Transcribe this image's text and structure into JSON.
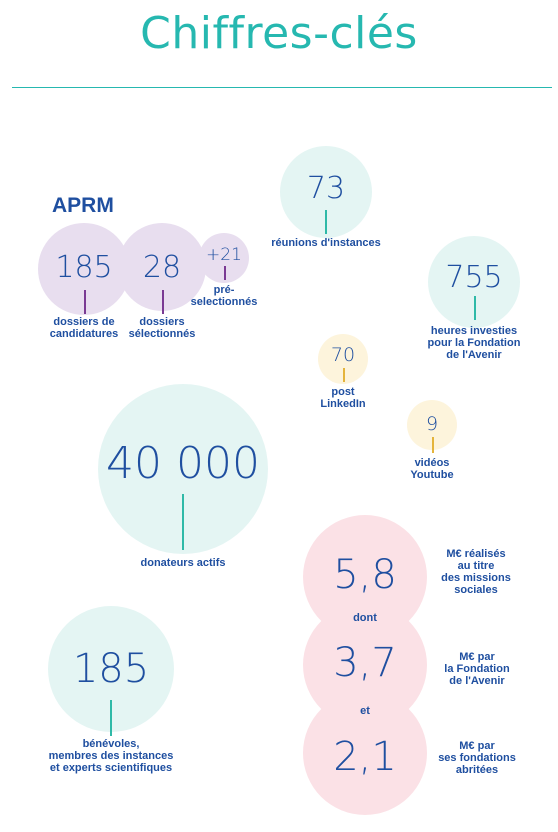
{
  "page": {
    "title": "Chiffres-clés"
  },
  "aprm": {
    "heading": "APRM",
    "candidatures": {
      "value": "185",
      "label": "dossiers de\ncandidatures"
    },
    "selectionnes": {
      "value": "28",
      "label": "dossiers\nsélectionnés"
    },
    "preselectionnes": {
      "value": "+21",
      "label": "pré-\nselectionnés"
    }
  },
  "reunions": {
    "value": "73",
    "label": "réunions d'instances"
  },
  "heures": {
    "value": "755",
    "label": "heures investies\npour la Fondation\nde l'Avenir"
  },
  "linkedin": {
    "value": "70",
    "label": "post\nLinkedIn"
  },
  "youtube": {
    "value": "9",
    "label": "vidéos\nYoutube"
  },
  "donateurs": {
    "value": "40 000",
    "label": "donateurs actifs"
  },
  "benevoles": {
    "value": "185",
    "label": "bénévoles,\nmembres des instances\net experts scientifiques"
  },
  "missions": {
    "total": {
      "value": "5,8",
      "label": "M€ réalisés\nau titre\ndes missions\nsociales"
    },
    "dont": "dont",
    "fondation": {
      "value": "3,7",
      "label": "M€ par\nla Fondation\nde l'Avenir"
    },
    "et": "et",
    "abritees": {
      "value": "2,1",
      "label": "M€ par\nses fondations\nabritées"
    }
  },
  "colors": {
    "title": "#26b8b0",
    "text": "#1f4fa0",
    "teal_circle": "#e4f5f3",
    "lavender_circle": "#e8deef",
    "yellow_circle": "#fdf4dc",
    "pink_circle": "#fbe1e6"
  }
}
